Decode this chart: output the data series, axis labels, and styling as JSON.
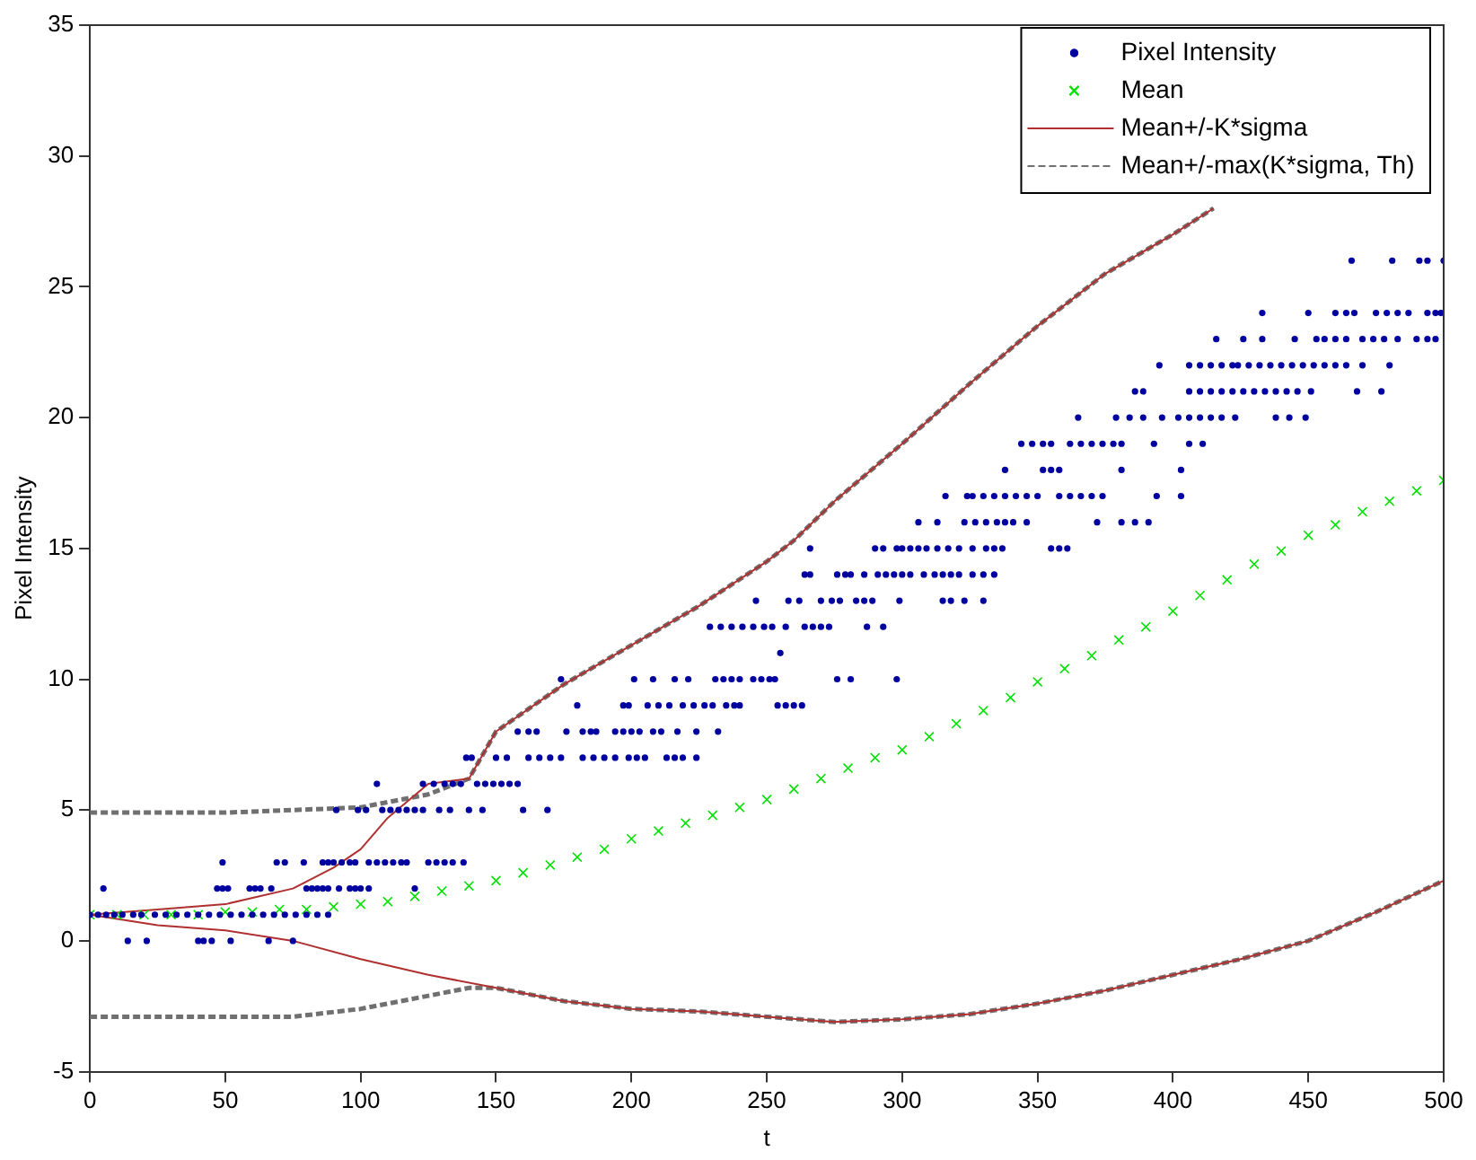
{
  "chart_data": {
    "type": "scatter",
    "xlabel": "t",
    "ylabel": "Pixel Intensity",
    "xlim": [
      0,
      500
    ],
    "ylim": [
      -5,
      35
    ],
    "xticks": [
      0,
      50,
      100,
      150,
      200,
      250,
      300,
      350,
      400,
      450,
      500
    ],
    "yticks": [
      -5,
      0,
      5,
      10,
      15,
      20,
      25,
      30,
      35
    ],
    "grid": false,
    "legend": "top right",
    "series": [
      {
        "name": "Pixel Intensity",
        "type": "scatter",
        "marker": "circle",
        "color": "#0000a0",
        "x": [
          14,
          21,
          40,
          42,
          45,
          52,
          66,
          75,
          0,
          3,
          6,
          9,
          12,
          16,
          19,
          24,
          28,
          32,
          36,
          40,
          44,
          48,
          52,
          56,
          60,
          64,
          68,
          72,
          76,
          80,
          84,
          88,
          5,
          47,
          49,
          51,
          59,
          61,
          63,
          67,
          80,
          82,
          84,
          86,
          88,
          92,
          96,
          98,
          100,
          103,
          120,
          49,
          69,
          72,
          79,
          86,
          88,
          90,
          93,
          96,
          98,
          103,
          106,
          109,
          112,
          115,
          117,
          125,
          128,
          131,
          134,
          138,
          91,
          99,
          102,
          108,
          111,
          114,
          117,
          120,
          123,
          129,
          133,
          140,
          145,
          160,
          169,
          106,
          123,
          127,
          131,
          134,
          137,
          143,
          146,
          149,
          152,
          155,
          158,
          139,
          141,
          150,
          154,
          162,
          166,
          170,
          174,
          182,
          186,
          190,
          194,
          199,
          202,
          205,
          213,
          216,
          219,
          224,
          158,
          162,
          165,
          176,
          182,
          185,
          187,
          194,
          197,
          200,
          203,
          208,
          211,
          217,
          224,
          232,
          180,
          197,
          199,
          206,
          210,
          214,
          219,
          223,
          227,
          230,
          235,
          238,
          240,
          254,
          257,
          260,
          263,
          174,
          201,
          208,
          216,
          221,
          231,
          234,
          237,
          240,
          245,
          248,
          251,
          253,
          276,
          281,
          298,
          255,
          229,
          233,
          237,
          241,
          245,
          249,
          252,
          257,
          264,
          267,
          270,
          273,
          287,
          293,
          246,
          258,
          262,
          270,
          274,
          277,
          283,
          286,
          289,
          299,
          315,
          318,
          323,
          330,
          264,
          266,
          276,
          279,
          281,
          286,
          291,
          294,
          297,
          300,
          303,
          308,
          312,
          315,
          318,
          321,
          326,
          330,
          334,
          266,
          290,
          293,
          298,
          300,
          303,
          306,
          309,
          313,
          317,
          321,
          326,
          331,
          334,
          337,
          355,
          358,
          361,
          306,
          313,
          323,
          327,
          331,
          335,
          338,
          341,
          346,
          372,
          381,
          386,
          391,
          316,
          324,
          326,
          330,
          334,
          338,
          342,
          346,
          350,
          358,
          362,
          366,
          370,
          374,
          394,
          403,
          338,
          352,
          355,
          358,
          381,
          403,
          344,
          348,
          352,
          355,
          362,
          366,
          370,
          374,
          378,
          381,
          393,
          406,
          411,
          365,
          379,
          384,
          389,
          396,
          402,
          406,
          410,
          414,
          418,
          423,
          438,
          443,
          449,
          386,
          389,
          406,
          410,
          414,
          418,
          422,
          426,
          430,
          434,
          438,
          442,
          446,
          451,
          468,
          477,
          395,
          406,
          410,
          414,
          418,
          422,
          424,
          428,
          432,
          436,
          440,
          444,
          448,
          452,
          456,
          460,
          464,
          470,
          480,
          416,
          426,
          433,
          445,
          453,
          456,
          460,
          464,
          470,
          474,
          478,
          483,
          490,
          494,
          497,
          433,
          450,
          460,
          464,
          467,
          475,
          479,
          483,
          487,
          494,
          497,
          499,
          466,
          481,
          491,
          494,
          500
        ],
        "values": [
          0,
          0,
          0,
          0,
          0,
          0,
          0,
          0,
          1,
          1,
          1,
          1,
          1,
          1,
          1,
          1,
          1,
          1,
          1,
          1,
          1,
          1,
          1,
          1,
          1,
          1,
          1,
          1,
          1,
          1,
          1,
          1,
          2,
          2,
          2,
          2,
          2,
          2,
          2,
          2,
          2,
          2,
          2,
          2,
          2,
          2,
          2,
          2,
          2,
          2,
          2,
          3,
          3,
          3,
          3,
          3,
          3,
          3,
          3,
          3,
          3,
          3,
          3,
          3,
          3,
          3,
          3,
          3,
          3,
          3,
          3,
          3,
          5,
          5,
          5,
          5,
          5,
          5,
          5,
          5,
          5,
          5,
          5,
          5,
          5,
          5,
          5,
          6,
          6,
          6,
          6,
          6,
          6,
          6,
          6,
          6,
          6,
          6,
          6,
          7,
          7,
          7,
          7,
          7,
          7,
          7,
          7,
          7,
          7,
          7,
          7,
          7,
          7,
          7,
          7,
          7,
          7,
          7,
          8,
          8,
          8,
          8,
          8,
          8,
          8,
          8,
          8,
          8,
          8,
          8,
          8,
          8,
          8,
          8,
          9,
          9,
          9,
          9,
          9,
          9,
          9,
          9,
          9,
          9,
          9,
          9,
          9,
          9,
          9,
          9,
          9,
          10,
          10,
          10,
          10,
          10,
          10,
          10,
          10,
          10,
          10,
          10,
          10,
          10,
          10,
          10,
          10,
          11,
          12,
          12,
          12,
          12,
          12,
          12,
          12,
          12,
          12,
          12,
          12,
          12,
          12,
          12,
          13,
          13,
          13,
          13,
          13,
          13,
          13,
          13,
          13,
          13,
          13,
          13,
          13,
          13,
          14,
          14,
          14,
          14,
          14,
          14,
          14,
          14,
          14,
          14,
          14,
          14,
          14,
          14,
          14,
          14,
          14,
          14,
          14,
          15,
          15,
          15,
          15,
          15,
          15,
          15,
          15,
          15,
          15,
          15,
          15,
          15,
          15,
          15,
          15,
          15,
          15,
          16,
          16,
          16,
          16,
          16,
          16,
          16,
          16,
          16,
          16,
          16,
          16,
          16,
          17,
          17,
          17,
          17,
          17,
          17,
          17,
          17,
          17,
          17,
          17,
          17,
          17,
          17,
          17,
          17,
          18,
          18,
          18,
          18,
          18,
          18,
          19,
          19,
          19,
          19,
          19,
          19,
          19,
          19,
          19,
          19,
          19,
          19,
          19,
          20,
          20,
          20,
          20,
          20,
          20,
          20,
          20,
          20,
          20,
          20,
          20,
          20,
          20,
          21,
          21,
          21,
          21,
          21,
          21,
          21,
          21,
          21,
          21,
          21,
          21,
          21,
          21,
          21,
          21,
          22,
          22,
          22,
          22,
          22,
          22,
          22,
          22,
          22,
          22,
          22,
          22,
          22,
          22,
          22,
          22,
          22,
          22,
          22,
          23,
          23,
          23,
          23,
          23,
          23,
          23,
          23,
          23,
          23,
          23,
          23,
          23,
          23,
          23,
          24,
          24,
          24,
          24,
          24,
          24,
          24,
          24,
          24,
          24,
          24,
          24,
          26,
          26,
          26,
          26,
          26
        ]
      },
      {
        "name": "Mean",
        "type": "scatter",
        "marker": "cross",
        "color": "#00e000",
        "x": [
          0,
          10,
          20,
          30,
          40,
          50,
          60,
          70,
          80,
          90,
          100,
          110,
          120,
          130,
          140,
          150,
          160,
          170,
          180,
          190,
          200,
          210,
          220,
          230,
          240,
          250,
          260,
          270,
          280,
          290,
          300,
          310,
          320,
          330,
          340,
          350,
          360,
          370,
          380,
          390,
          400,
          410,
          420,
          430,
          440,
          450,
          460,
          470,
          480,
          490,
          500
        ],
        "values": [
          1.0,
          1.0,
          1.0,
          1.0,
          1.0,
          1.1,
          1.1,
          1.2,
          1.2,
          1.3,
          1.4,
          1.5,
          1.7,
          1.9,
          2.1,
          2.3,
          2.6,
          2.9,
          3.2,
          3.5,
          3.9,
          4.2,
          4.5,
          4.8,
          5.1,
          5.4,
          5.8,
          6.2,
          6.6,
          7.0,
          7.3,
          7.8,
          8.3,
          8.8,
          9.3,
          9.9,
          10.4,
          10.9,
          11.5,
          12.0,
          12.6,
          13.2,
          13.8,
          14.4,
          14.9,
          15.5,
          15.9,
          16.4,
          16.8,
          17.2,
          17.6
        ]
      },
      {
        "name": "Mean+/-K*sigma",
        "type": "line",
        "marker": "none",
        "line_style": "solid",
        "color": "#b03030",
        "x": [
          0,
          25,
          50,
          75,
          90,
          100,
          110,
          125,
          140,
          150,
          175,
          200,
          225,
          250,
          260,
          275,
          300,
          325,
          350,
          375,
          400,
          415
        ],
        "values": [
          1.0,
          1.2,
          1.4,
          2.0,
          2.8,
          3.5,
          4.7,
          6.0,
          6.2,
          8.0,
          9.8,
          11.3,
          12.8,
          14.5,
          15.3,
          16.8,
          19.0,
          21.3,
          23.5,
          25.5,
          27.0,
          28.0
        ]
      },
      {
        "type": "line",
        "marker": "none",
        "line_style": "solid",
        "color": "#b03030",
        "x": [
          0,
          25,
          50,
          75,
          100,
          125,
          150,
          175,
          200,
          225,
          250,
          275,
          300,
          325,
          350,
          375,
          400,
          425,
          450,
          475,
          500
        ],
        "values": [
          1.0,
          0.6,
          0.4,
          0.0,
          -0.7,
          -1.3,
          -1.8,
          -2.3,
          -2.6,
          -2.7,
          -2.9,
          -3.1,
          -3.0,
          -2.8,
          -2.4,
          -1.9,
          -1.3,
          -0.7,
          0.0,
          1.1,
          2.3
        ]
      },
      {
        "name": "Mean+/-max(K*sigma, Th)",
        "type": "line",
        "marker": "none",
        "line_style": "dashed",
        "color": "#707070",
        "x": [
          0,
          50,
          100,
          125,
          140,
          150,
          175,
          200,
          225,
          250,
          260,
          275,
          300,
          325,
          350,
          375,
          400,
          415
        ],
        "values": [
          4.9,
          4.9,
          5.1,
          5.6,
          6.2,
          8.0,
          9.8,
          11.3,
          12.8,
          14.5,
          15.3,
          16.8,
          19.0,
          21.3,
          23.5,
          25.5,
          27.0,
          28.0
        ]
      },
      {
        "type": "line",
        "marker": "none",
        "line_style": "dashed",
        "color": "#707070",
        "x": [
          0,
          50,
          75,
          100,
          125,
          140,
          150,
          175,
          200,
          225,
          250,
          275,
          300,
          325,
          350,
          375,
          400,
          425,
          450,
          475,
          500
        ],
        "values": [
          -2.9,
          -2.9,
          -2.9,
          -2.6,
          -2.1,
          -1.8,
          -1.8,
          -2.3,
          -2.6,
          -2.7,
          -2.9,
          -3.1,
          -3.0,
          -2.8,
          -2.4,
          -1.9,
          -1.3,
          -0.7,
          0.0,
          1.1,
          2.3
        ]
      }
    ]
  }
}
